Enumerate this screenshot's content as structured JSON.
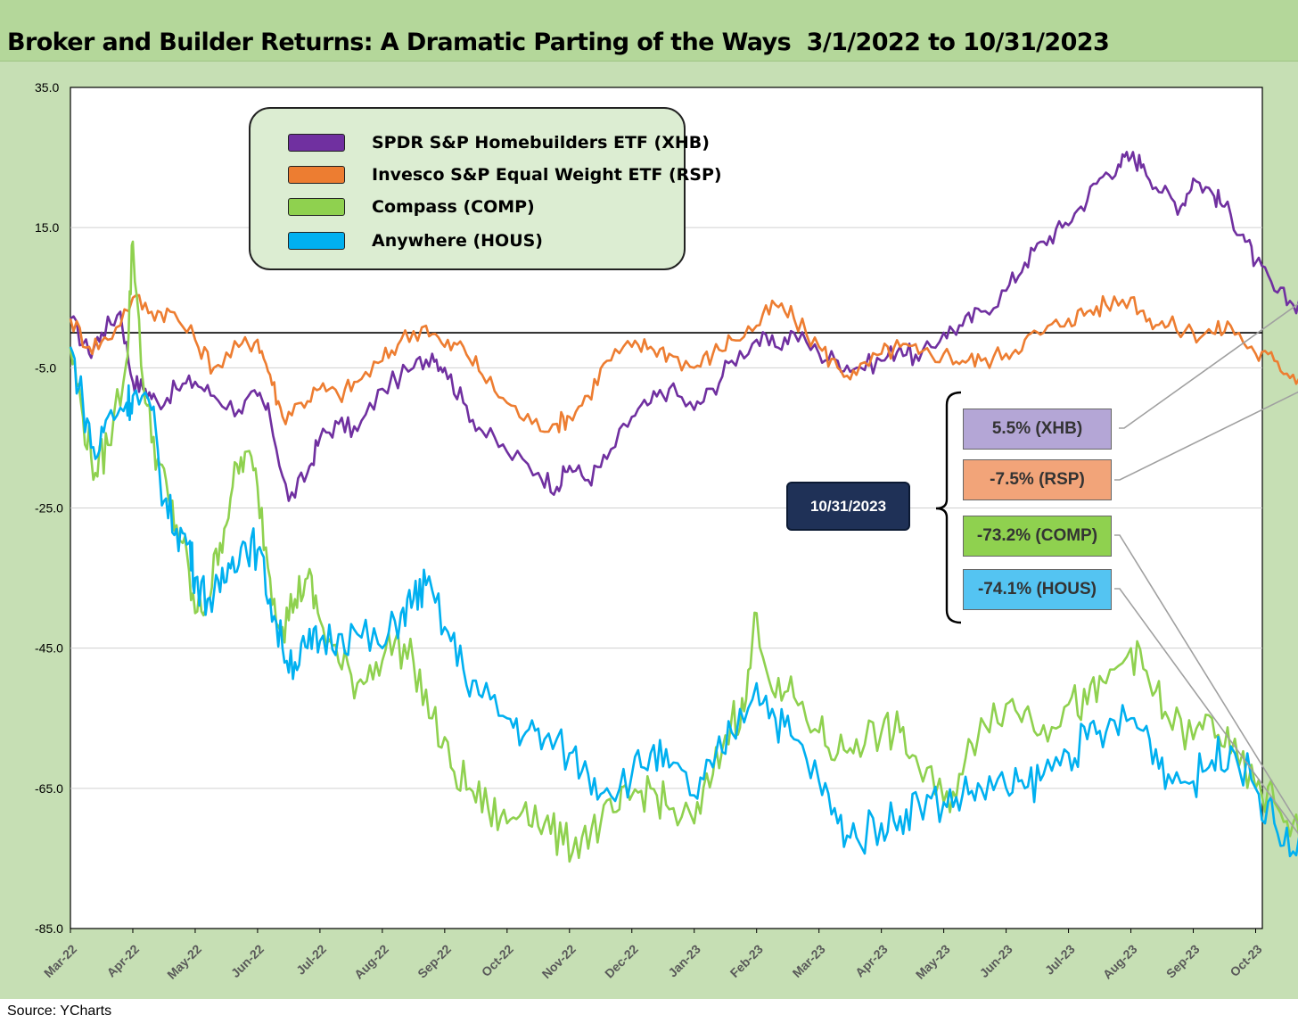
{
  "title": "Broker and Builder Returns: A Dramatic Parting of the Ways  3/1/2022 to 10/31/2023",
  "source": "Source:  YCharts",
  "callouts": {
    "date": "10/31/2023",
    "items": [
      {
        "label": "5.5% (XHB)",
        "color": "#b4a6d6"
      },
      {
        "label": "-7.5% (RSP)",
        "color": "#f2a479"
      },
      {
        "label": "-73.2% (COMP)",
        "color": "#8fd14f"
      },
      {
        "label": "-74.1% (HOUS)",
        "color": "#54c4f2"
      }
    ]
  },
  "chart_data": {
    "type": "line",
    "title": "Broker and Builder Returns: A Dramatic Parting of the Ways  3/1/2022 to 10/31/2023",
    "ylim": [
      -85,
      35
    ],
    "yticks": [
      "35.0",
      "15.0",
      "-5.0",
      "-25.0",
      "-45.0",
      "-65.0",
      "-85.0"
    ],
    "ytick_values": [
      35,
      15,
      -5,
      -25,
      -45,
      -65,
      -85
    ],
    "baseline": 0,
    "grid": "horizontal",
    "legend_position": "top-left",
    "x_labels": [
      "Mar-22",
      "Apr-22",
      "May-22",
      "Jun-22",
      "Jul-22",
      "Aug-22",
      "Sep-22",
      "Oct-22",
      "Nov-22",
      "Dec-22",
      "Jan-23",
      "Feb-23",
      "Mar-23",
      "Apr-23",
      "May-23",
      "Jun-23",
      "Jul-23",
      "Aug-23",
      "Sep-23",
      "Oct-23"
    ],
    "series": [
      {
        "name": "SPDR S&P Homebuilders ETF (XHB)",
        "color": "#7030a0",
        "points": [
          [
            0,
            2
          ],
          [
            0.3,
            -3
          ],
          [
            0.5,
            0
          ],
          [
            0.8,
            3
          ],
          [
            1.0,
            -7
          ],
          [
            1.2,
            -8
          ],
          [
            1.4,
            -10
          ],
          [
            1.7,
            -8
          ],
          [
            2.0,
            -7
          ],
          [
            2.3,
            -9
          ],
          [
            2.7,
            -11
          ],
          [
            3.0,
            -9
          ],
          [
            3.2,
            -12
          ],
          [
            3.5,
            -24
          ],
          [
            3.8,
            -20
          ],
          [
            4.0,
            -15
          ],
          [
            4.3,
            -13
          ],
          [
            4.6,
            -14
          ],
          [
            5.0,
            -8
          ],
          [
            5.5,
            -5
          ],
          [
            5.8,
            -3
          ],
          [
            6.0,
            -5
          ],
          [
            6.3,
            -10
          ],
          [
            6.6,
            -14
          ],
          [
            7.0,
            -17
          ],
          [
            7.5,
            -20
          ],
          [
            7.8,
            -22
          ],
          [
            8.0,
            -19
          ],
          [
            8.3,
            -21
          ],
          [
            8.6,
            -18
          ],
          [
            9.0,
            -12
          ],
          [
            9.3,
            -10
          ],
          [
            9.6,
            -8
          ],
          [
            10.0,
            -11
          ],
          [
            10.3,
            -8
          ],
          [
            10.6,
            -4
          ],
          [
            11.0,
            -1
          ],
          [
            11.3,
            -2
          ],
          [
            11.6,
            0
          ],
          [
            12.0,
            -3
          ],
          [
            12.3,
            -4
          ],
          [
            12.6,
            -5
          ],
          [
            13.0,
            -4
          ],
          [
            13.3,
            -2
          ],
          [
            13.6,
            -4
          ],
          [
            14.0,
            0
          ],
          [
            14.3,
            1
          ],
          [
            14.6,
            3
          ],
          [
            15.0,
            6
          ],
          [
            15.3,
            10
          ],
          [
            15.6,
            13
          ],
          [
            15.9,
            15
          ],
          [
            16.2,
            18
          ],
          [
            16.5,
            22
          ],
          [
            16.8,
            24
          ],
          [
            17.0,
            25
          ],
          [
            17.2,
            24
          ],
          [
            17.5,
            20
          ],
          [
            17.8,
            18
          ],
          [
            18.0,
            22
          ],
          [
            18.3,
            20
          ],
          [
            18.5,
            18
          ],
          [
            18.8,
            14
          ],
          [
            19.0,
            10
          ],
          [
            19.3,
            6
          ],
          [
            19.6,
            4
          ],
          [
            19.9,
            5.5
          ]
        ]
      },
      {
        "name": "Invesco S&P Equal Weight ETF (RSP)",
        "color": "#ed7d31",
        "points": [
          [
            0,
            2
          ],
          [
            0.3,
            -2
          ],
          [
            0.6,
            -1
          ],
          [
            1.0,
            5
          ],
          [
            1.3,
            3
          ],
          [
            1.6,
            3
          ],
          [
            2.0,
            -1
          ],
          [
            2.3,
            -5
          ],
          [
            2.7,
            -2
          ],
          [
            3.0,
            -1
          ],
          [
            3.2,
            -6
          ],
          [
            3.4,
            -12
          ],
          [
            3.7,
            -10
          ],
          [
            4.0,
            -8
          ],
          [
            4.3,
            -9
          ],
          [
            4.6,
            -7
          ],
          [
            5.0,
            -4
          ],
          [
            5.3,
            -1
          ],
          [
            5.7,
            1
          ],
          [
            6.0,
            -2
          ],
          [
            6.3,
            -2
          ],
          [
            6.6,
            -6
          ],
          [
            7.0,
            -10
          ],
          [
            7.4,
            -13
          ],
          [
            7.8,
            -13
          ],
          [
            8.0,
            -12
          ],
          [
            8.3,
            -9
          ],
          [
            8.6,
            -4
          ],
          [
            9.0,
            -2
          ],
          [
            9.3,
            -2
          ],
          [
            9.6,
            -3
          ],
          [
            10.0,
            -5
          ],
          [
            10.3,
            -3
          ],
          [
            10.6,
            -1
          ],
          [
            11.0,
            1
          ],
          [
            11.3,
            4
          ],
          [
            11.6,
            2
          ],
          [
            12.0,
            -2
          ],
          [
            12.3,
            -5
          ],
          [
            12.6,
            -6
          ],
          [
            13.0,
            -3
          ],
          [
            13.3,
            -2
          ],
          [
            13.6,
            -3
          ],
          [
            14.0,
            -3
          ],
          [
            14.3,
            -4
          ],
          [
            14.6,
            -4
          ],
          [
            15.0,
            -3
          ],
          [
            15.3,
            -1
          ],
          [
            15.6,
            0
          ],
          [
            16.0,
            2
          ],
          [
            16.3,
            3
          ],
          [
            16.6,
            4
          ],
          [
            17.0,
            5
          ],
          [
            17.3,
            2
          ],
          [
            17.6,
            1
          ],
          [
            18.0,
            0
          ],
          [
            18.3,
            0
          ],
          [
            18.6,
            1
          ],
          [
            19.0,
            -3
          ],
          [
            19.3,
            -4
          ],
          [
            19.6,
            -6
          ],
          [
            19.9,
            -7.5
          ]
        ]
      },
      {
        "name": "Compass (COMP)",
        "color": "#8fd14f",
        "points": [
          [
            0,
            -2
          ],
          [
            0.2,
            -12
          ],
          [
            0.4,
            -20
          ],
          [
            0.6,
            -16
          ],
          [
            0.9,
            -4
          ],
          [
            1.0,
            13
          ],
          [
            1.2,
            -10
          ],
          [
            1.4,
            -18
          ],
          [
            1.6,
            -25
          ],
          [
            1.8,
            -30
          ],
          [
            2.0,
            -40
          ],
          [
            2.2,
            -38
          ],
          [
            2.4,
            -30
          ],
          [
            2.6,
            -22
          ],
          [
            2.8,
            -17
          ],
          [
            3.0,
            -22
          ],
          [
            3.2,
            -35
          ],
          [
            3.4,
            -42
          ],
          [
            3.6,
            -38
          ],
          [
            3.8,
            -35
          ],
          [
            4.0,
            -41
          ],
          [
            4.3,
            -47
          ],
          [
            4.6,
            -50
          ],
          [
            4.9,
            -47
          ],
          [
            5.2,
            -44
          ],
          [
            5.5,
            -47
          ],
          [
            5.8,
            -55
          ],
          [
            6.1,
            -62
          ],
          [
            6.4,
            -65
          ],
          [
            6.7,
            -68
          ],
          [
            7.0,
            -70
          ],
          [
            7.3,
            -67
          ],
          [
            7.6,
            -70
          ],
          [
            7.9,
            -73
          ],
          [
            8.2,
            -72
          ],
          [
            8.5,
            -70
          ],
          [
            8.8,
            -68
          ],
          [
            9.0,
            -66
          ],
          [
            9.3,
            -65
          ],
          [
            9.6,
            -68
          ],
          [
            10.0,
            -70
          ],
          [
            10.3,
            -63
          ],
          [
            10.6,
            -55
          ],
          [
            10.8,
            -54
          ],
          [
            11.0,
            -40
          ],
          [
            11.3,
            -52
          ],
          [
            11.6,
            -52
          ],
          [
            12.0,
            -57
          ],
          [
            12.3,
            -60
          ],
          [
            12.6,
            -58
          ],
          [
            13.0,
            -57
          ],
          [
            13.3,
            -57
          ],
          [
            13.6,
            -62
          ],
          [
            14.0,
            -67
          ],
          [
            14.3,
            -63
          ],
          [
            14.6,
            -55
          ],
          [
            15.0,
            -53
          ],
          [
            15.3,
            -54
          ],
          [
            15.6,
            -56
          ],
          [
            16.0,
            -53
          ],
          [
            16.3,
            -53
          ],
          [
            16.6,
            -50
          ],
          [
            17.0,
            -45
          ],
          [
            17.3,
            -50
          ],
          [
            17.6,
            -55
          ],
          [
            18.0,
            -58
          ],
          [
            18.3,
            -55
          ],
          [
            18.6,
            -60
          ],
          [
            19.0,
            -65
          ],
          [
            19.3,
            -67
          ],
          [
            19.6,
            -70
          ],
          [
            19.9,
            -73.2
          ]
        ]
      },
      {
        "name": "Anywhere (HOUS)",
        "color": "#00b0f0",
        "points": [
          [
            0,
            -2
          ],
          [
            0.2,
            -10
          ],
          [
            0.4,
            -18
          ],
          [
            0.6,
            -12
          ],
          [
            0.9,
            -10
          ],
          [
            1.0,
            -9
          ],
          [
            1.3,
            -11
          ],
          [
            1.5,
            -24
          ],
          [
            1.7,
            -28
          ],
          [
            1.9,
            -30
          ],
          [
            2.0,
            -35
          ],
          [
            2.2,
            -38
          ],
          [
            2.4,
            -37
          ],
          [
            2.6,
            -32
          ],
          [
            2.8,
            -30
          ],
          [
            3.0,
            -31
          ],
          [
            3.2,
            -38
          ],
          [
            3.4,
            -45
          ],
          [
            3.6,
            -47
          ],
          [
            3.8,
            -45
          ],
          [
            4.0,
            -44
          ],
          [
            4.3,
            -43
          ],
          [
            4.6,
            -43
          ],
          [
            5.0,
            -45
          ],
          [
            5.3,
            -40
          ],
          [
            5.5,
            -38
          ],
          [
            5.7,
            -36
          ],
          [
            6.0,
            -42
          ],
          [
            6.3,
            -48
          ],
          [
            6.6,
            -52
          ],
          [
            7.0,
            -55
          ],
          [
            7.3,
            -57
          ],
          [
            7.6,
            -58
          ],
          [
            8.0,
            -60
          ],
          [
            8.3,
            -63
          ],
          [
            8.6,
            -65
          ],
          [
            9.0,
            -63
          ],
          [
            9.3,
            -60
          ],
          [
            9.6,
            -62
          ],
          [
            10.0,
            -66
          ],
          [
            10.3,
            -62
          ],
          [
            10.6,
            -57
          ],
          [
            11.0,
            -50
          ],
          [
            11.3,
            -55
          ],
          [
            11.6,
            -58
          ],
          [
            12.0,
            -64
          ],
          [
            12.3,
            -70
          ],
          [
            12.6,
            -72
          ],
          [
            13.0,
            -70
          ],
          [
            13.3,
            -69
          ],
          [
            13.6,
            -67
          ],
          [
            14.0,
            -67
          ],
          [
            14.3,
            -66
          ],
          [
            14.6,
            -65
          ],
          [
            15.0,
            -65
          ],
          [
            15.3,
            -65
          ],
          [
            15.6,
            -63
          ],
          [
            16.0,
            -60
          ],
          [
            16.3,
            -58
          ],
          [
            16.6,
            -57
          ],
          [
            17.0,
            -55
          ],
          [
            17.3,
            -58
          ],
          [
            17.6,
            -63
          ],
          [
            18.0,
            -64
          ],
          [
            18.3,
            -61
          ],
          [
            18.6,
            -59
          ],
          [
            19.0,
            -65
          ],
          [
            19.3,
            -70
          ],
          [
            19.6,
            -74
          ],
          [
            19.9,
            -74.1
          ]
        ]
      }
    ]
  }
}
